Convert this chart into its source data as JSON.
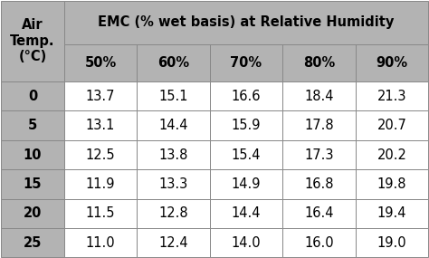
{
  "title": "EMC (% wet basis) at Relative Humidity",
  "col_header_label": "Air\nTemp.\n(°C)",
  "col_headers": [
    "50%",
    "60%",
    "70%",
    "80%",
    "90%"
  ],
  "row_headers": [
    "0",
    "5",
    "10",
    "15",
    "20",
    "25"
  ],
  "table_data": [
    [
      "13.7",
      "15.1",
      "16.6",
      "18.4",
      "21.3"
    ],
    [
      "13.1",
      "14.4",
      "15.9",
      "17.8",
      "20.7"
    ],
    [
      "12.5",
      "13.8",
      "15.4",
      "17.3",
      "20.2"
    ],
    [
      "11.9",
      "13.3",
      "14.9",
      "16.8",
      "19.8"
    ],
    [
      "11.5",
      "12.8",
      "14.4",
      "16.4",
      "19.4"
    ],
    [
      "11.0",
      "12.4",
      "14.0",
      "16.0",
      "19.0"
    ]
  ],
  "header_bg": "#b3b3b3",
  "row_header_bg": "#b3b3b3",
  "cell_bg": "#ffffff",
  "border_color": "#888888",
  "text_color": "#000000",
  "header_fontsize": 10.5,
  "cell_fontsize": 10.5,
  "title_fontsize": 10.5,
  "row_header_label_fontsize": 10.5,
  "fig_width": 4.74,
  "fig_height": 2.85,
  "dpi": 100
}
